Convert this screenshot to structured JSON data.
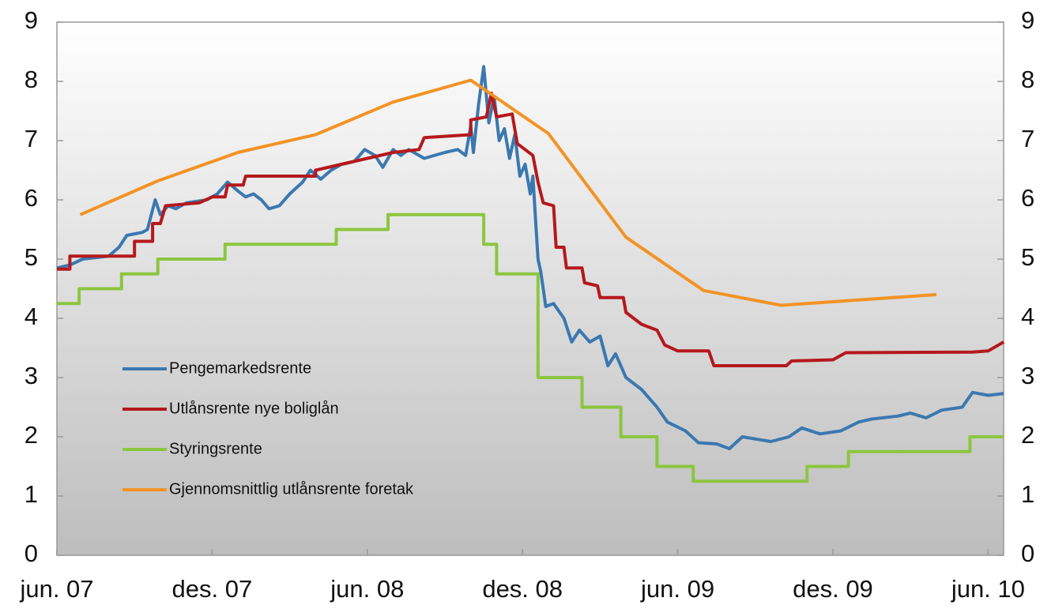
{
  "chart_data": {
    "type": "line",
    "xlim": [
      0,
      36.6
    ],
    "xticks": [
      {
        "value": 0,
        "label": "jun. 07"
      },
      {
        "value": 6,
        "label": "des. 07"
      },
      {
        "value": 12,
        "label": "jun. 08"
      },
      {
        "value": 18,
        "label": "des. 08"
      },
      {
        "value": 24,
        "label": "jun. 09"
      },
      {
        "value": 30,
        "label": "des. 09"
      },
      {
        "value": 36,
        "label": "jun. 10"
      }
    ],
    "ylim": [
      0,
      9
    ],
    "yticks": [
      0,
      1,
      2,
      3,
      4,
      5,
      6,
      7,
      8,
      9
    ],
    "y2lim": [
      0,
      9
    ],
    "y2ticks": [
      0,
      1,
      2,
      3,
      4,
      5,
      6,
      7,
      8,
      9
    ],
    "legend": "lower left",
    "series": [
      {
        "name": "Pengemarkedsrente",
        "color": "#3b78b0",
        "x": [
          0,
          0.5,
          1,
          2,
          2.4,
          2.7,
          3.3,
          3.5,
          3.8,
          4,
          4.3,
          4.6,
          5,
          5.8,
          6.2,
          6.6,
          7,
          7.3,
          7.6,
          7.9,
          8.2,
          8.6,
          9,
          9.5,
          9.8,
          10.2,
          10.6,
          11,
          11.5,
          11.9,
          12.3,
          12.6,
          13,
          13.3,
          13.6,
          14.2,
          15,
          15.5,
          15.8,
          16,
          16.1,
          16.3,
          16.5,
          16.7,
          16.9,
          17.1,
          17.3,
          17.5,
          17.7,
          17.9,
          18.1,
          18.3,
          18.4,
          18.6,
          18.7,
          18.8,
          18.9,
          19.2,
          19.6,
          19.9,
          20.2,
          20.6,
          21,
          21.3,
          21.6,
          22,
          22.6,
          23.2,
          23.6,
          24.3,
          24.8,
          25.5,
          26,
          26.5,
          27.2,
          27.6,
          28.3,
          28.8,
          29.5,
          30.3,
          31,
          31.5,
          32.5,
          33,
          33.6,
          34.2,
          35,
          35.4,
          36,
          36.6
        ],
        "values": [
          4.85,
          4.9,
          5.0,
          5.05,
          5.2,
          5.4,
          5.45,
          5.5,
          6.0,
          5.75,
          5.9,
          5.85,
          5.95,
          6.0,
          6.1,
          6.3,
          6.15,
          6.05,
          6.1,
          6.0,
          5.85,
          5.9,
          6.1,
          6.3,
          6.5,
          6.35,
          6.5,
          6.6,
          6.65,
          6.85,
          6.75,
          6.55,
          6.85,
          6.75,
          6.85,
          6.7,
          6.8,
          6.85,
          6.75,
          7.25,
          6.8,
          7.6,
          8.25,
          7.3,
          7.75,
          7.0,
          7.2,
          6.7,
          7.1,
          6.4,
          6.6,
          6.1,
          6.4,
          5.0,
          4.8,
          4.5,
          4.2,
          4.25,
          4.0,
          3.6,
          3.8,
          3.6,
          3.7,
          3.2,
          3.4,
          3.0,
          2.8,
          2.5,
          2.25,
          2.1,
          1.9,
          1.88,
          1.8,
          2.0,
          1.95,
          1.92,
          2.0,
          2.15,
          2.05,
          2.1,
          2.25,
          2.3,
          2.35,
          2.4,
          2.32,
          2.45,
          2.5,
          2.75,
          2.7,
          2.73
        ]
      },
      {
        "name": "Utlånsrente nye boliglån",
        "color": "#b5191c",
        "x": [
          0,
          0.5,
          0.5,
          3,
          3,
          3.7,
          3.7,
          4,
          4.2,
          5.5,
          6,
          6.5,
          6.6,
          7.2,
          7.3,
          10,
          10,
          11,
          12,
          13,
          14,
          14.2,
          16,
          16,
          16.6,
          16.8,
          17,
          17.6,
          17.8,
          18.4,
          18.6,
          18.8,
          19.2,
          19.3,
          19.6,
          19.7,
          20.3,
          20.4,
          20.9,
          21,
          21.9,
          22,
          22.6,
          23.2,
          23.5,
          24,
          25.2,
          25.4,
          28.2,
          28.4,
          30,
          30.5,
          35.4,
          36,
          36.6
        ],
        "values": [
          4.83,
          4.83,
          5.05,
          5.05,
          5.3,
          5.3,
          5.6,
          5.6,
          5.9,
          5.95,
          6.05,
          6.05,
          6.25,
          6.25,
          6.4,
          6.4,
          6.5,
          6.6,
          6.7,
          6.8,
          6.85,
          7.05,
          7.1,
          7.35,
          7.4,
          7.8,
          7.4,
          7.45,
          6.95,
          6.75,
          6.3,
          5.95,
          5.9,
          5.2,
          5.2,
          4.85,
          4.85,
          4.6,
          4.55,
          4.35,
          4.35,
          4.1,
          3.9,
          3.8,
          3.55,
          3.45,
          3.45,
          3.2,
          3.2,
          3.28,
          3.3,
          3.42,
          3.43,
          3.45,
          3.6
        ]
      },
      {
        "name": "Styringsrente",
        "color": "#8cc63f",
        "x": [
          0,
          0.86,
          0.86,
          2.5,
          2.5,
          3.9,
          3.9,
          6.5,
          6.5,
          10.8,
          10.8,
          12.8,
          12.8,
          16.5,
          16.5,
          17,
          17,
          18.6,
          18.6,
          20.3,
          20.3,
          21.8,
          21.8,
          23.2,
          23.2,
          24.6,
          24.6,
          29,
          29,
          30.6,
          30.6,
          35.3,
          35.3,
          36.6
        ],
        "values": [
          4.25,
          4.25,
          4.5,
          4.5,
          4.75,
          4.75,
          5,
          5,
          5.25,
          5.25,
          5.5,
          5.5,
          5.75,
          5.75,
          5.25,
          5.25,
          4.75,
          4.75,
          3,
          3,
          2.5,
          2.5,
          2,
          2,
          1.5,
          1.5,
          1.25,
          1.25,
          1.5,
          1.5,
          1.75,
          1.75,
          2,
          2
        ]
      },
      {
        "name": "Gjennomsnittlig utlånsrente foretak",
        "color": "#f39325",
        "x": [
          0.9,
          3.9,
          7,
          10,
          13,
          16,
          19,
          22,
          25,
          28,
          34
        ],
        "values": [
          5.75,
          6.32,
          6.8,
          7.1,
          7.65,
          8.02,
          7.12,
          5.37,
          4.47,
          4.22,
          4.4
        ]
      }
    ]
  }
}
